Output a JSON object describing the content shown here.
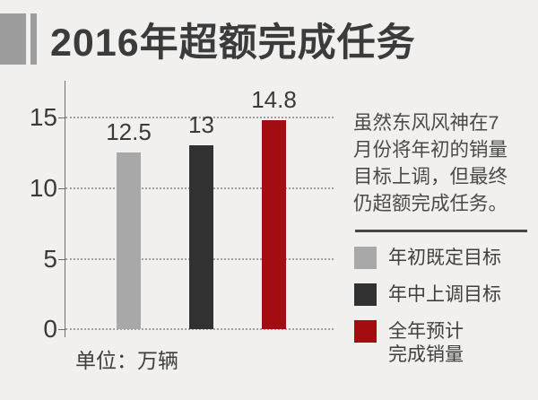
{
  "header": {
    "title": "2016年超额完成任务"
  },
  "chart_data": {
    "type": "bar",
    "title": "2016年超额完成任务",
    "categories": [
      "年初既定目标",
      "年中上调目标",
      "全年预计完成销量"
    ],
    "values": [
      12.5,
      13,
      14.8
    ],
    "value_labels": [
      "12.5",
      "13",
      "14.8"
    ],
    "bar_colors": [
      "#a8a8a8",
      "#313131",
      "#a30c10"
    ],
    "unit_label": "单位：万辆",
    "yticks": [
      0,
      5,
      10,
      15
    ],
    "ylim": [
      0,
      15
    ],
    "grid": "horizontal-dashed",
    "legend_position": "right"
  },
  "yaxis": {
    "ticks": [
      "15",
      "10",
      "5",
      "0"
    ]
  },
  "annotation": {
    "lines": [
      "虽然东风风神在7",
      "月份将年初的销量",
      "目标上调，但最终",
      "仍超额完成任务。"
    ]
  },
  "legend": {
    "items": [
      {
        "label": "年初既定目标",
        "color": "#a8a8a8"
      },
      {
        "label": "年中上调目标",
        "color": "#313131"
      },
      {
        "label": "全年预计\n完成销量",
        "color": "#a30c10"
      }
    ]
  },
  "colors": {
    "background": "#f1f0ee",
    "title": "#3b3b3b",
    "decor": "#9c9c9c",
    "bar_gray": "#a8a8a8",
    "bar_dark": "#313131",
    "bar_red": "#a30c10"
  }
}
